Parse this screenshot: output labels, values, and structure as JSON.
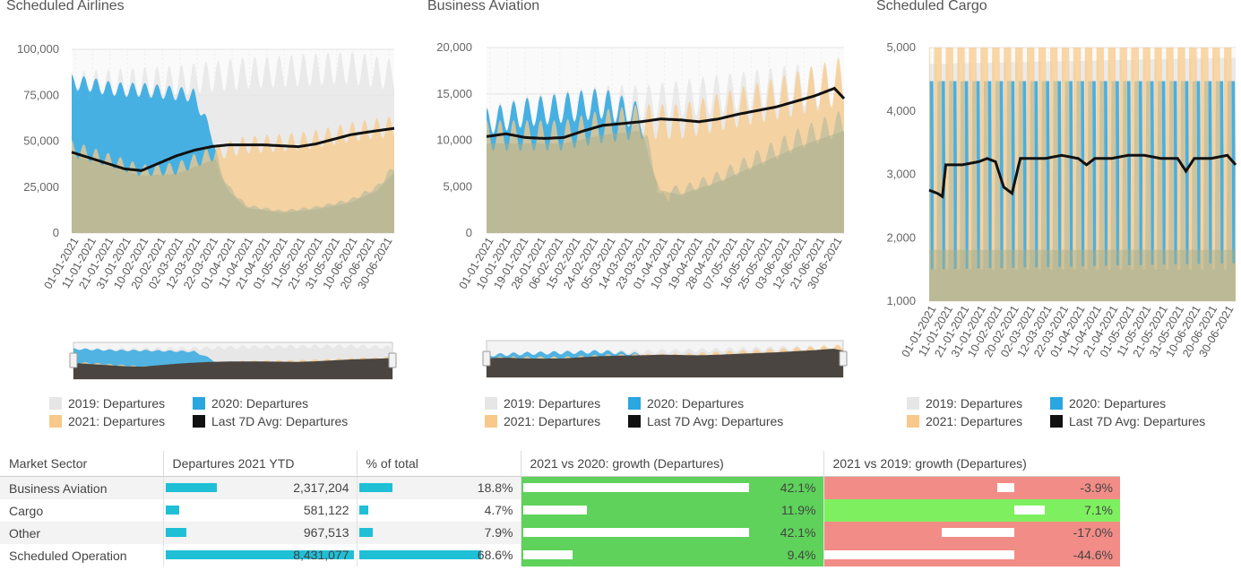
{
  "charts": [
    {
      "title": "Scheduled Airlines",
      "yticks": [
        "100,000",
        "75,000",
        "50,000",
        "25,000",
        "0"
      ],
      "xticks": [
        "01-01-2021",
        "11-01-2021",
        "21-01-2021",
        "31-01-2021",
        "10-02-2021",
        "20-02-2021",
        "02-03-2021",
        "12-03-2021",
        "22-03-2021",
        "01-04-2021",
        "11-04-2021",
        "21-04-2021",
        "01-05-2021",
        "11-05-2021",
        "21-05-2021",
        "31-05-2021",
        "10-06-2021",
        "20-06-2021",
        "30-06-2021"
      ],
      "legend": [
        "2019: Departures",
        "2020: Departures",
        "2021: Departures",
        "Last 7D Avg: Departures"
      ]
    },
    {
      "title": "Business Aviation",
      "yticks": [
        "20,000",
        "15,000",
        "10,000",
        "5,000",
        "0"
      ],
      "xticks": [
        "01-01-2021",
        "10-01-2021",
        "19-01-2021",
        "28-01-2021",
        "06-02-2021",
        "15-02-2021",
        "24-02-2021",
        "05-03-2021",
        "14-03-2021",
        "23-03-2021",
        "01-04-2021",
        "10-04-2021",
        "19-04-2021",
        "28-04-2021",
        "07-05-2021",
        "16-05-2021",
        "25-05-2021",
        "03-06-2021",
        "12-06-2021",
        "21-06-2021",
        "30-06-2021"
      ],
      "legend": [
        "2019: Departures",
        "2020: Departures",
        "2021: Departures",
        "Last 7D Avg: Departures"
      ]
    },
    {
      "title": "Scheduled Cargo",
      "yticks": [
        "5,000",
        "4,000",
        "3,000",
        "2,000",
        "1,000"
      ],
      "xticks": [
        "01-01-2021",
        "11-01-2021",
        "21-01-2021",
        "31-01-2021",
        "10-02-2021",
        "20-02-2021",
        "02-03-2021",
        "12-03-2021",
        "22-03-2021",
        "01-04-2021",
        "11-04-2021",
        "21-04-2021",
        "01-05-2021",
        "11-05-2021",
        "21-05-2021",
        "31-05-2021",
        "10-06-2021",
        "20-06-2021",
        "30-06-2021"
      ],
      "legend": [
        "2019: Departures",
        "2020: Departures",
        "2021: Departures",
        "Last 7D Avg: Departures"
      ]
    }
  ],
  "chart_data": [
    {
      "type": "area",
      "title": "Scheduled Airlines",
      "ylim": [
        0,
        100000
      ],
      "x_range": [
        "01-01-2021",
        "05-07-2021"
      ],
      "series": [
        {
          "name": "2019: Departures",
          "approx_x_day": [
            0,
            20,
            40,
            60,
            80,
            100,
            120,
            140,
            160,
            185
          ],
          "values": [
            80000,
            81000,
            82000,
            83000,
            85000,
            87000,
            88000,
            89000,
            90000,
            86000
          ]
        },
        {
          "name": "2020: Departures",
          "approx_x_day": [
            0,
            10,
            20,
            30,
            40,
            50,
            60,
            70,
            80,
            85,
            90,
            100,
            120,
            140,
            160,
            175,
            185
          ],
          "values": [
            82000,
            81000,
            79000,
            78000,
            78000,
            77000,
            76000,
            75000,
            55000,
            35000,
            25000,
            15000,
            12000,
            14000,
            18000,
            25000,
            36000
          ]
        },
        {
          "name": "2021: Departures",
          "approx_x_day": [
            0,
            20,
            40,
            60,
            80,
            100,
            120,
            140,
            160,
            185
          ],
          "values": [
            46000,
            40000,
            34000,
            35000,
            43000,
            48000,
            49000,
            51000,
            55000,
            58000
          ]
        },
        {
          "name": "Last 7D Avg: Departures",
          "approx_x_day": [
            0,
            10,
            20,
            30,
            40,
            50,
            60,
            70,
            80,
            90,
            100,
            110,
            120,
            130,
            140,
            150,
            160,
            170,
            185
          ],
          "values": [
            44000,
            41000,
            38000,
            35000,
            34000,
            38000,
            42000,
            45000,
            47000,
            48000,
            48000,
            48000,
            47500,
            47000,
            48500,
            51000,
            53500,
            55000,
            57000
          ]
        }
      ]
    },
    {
      "type": "area",
      "title": "Business Aviation",
      "ylim": [
        0,
        20000
      ],
      "x_range": [
        "01-01-2021",
        "05-07-2021"
      ],
      "series": [
        {
          "name": "2019: Departures",
          "approx_x_day": [
            0,
            20,
            40,
            60,
            80,
            100,
            120,
            140,
            160,
            185
          ],
          "values": [
            12000,
            13000,
            13500,
            14000,
            14000,
            14500,
            15000,
            15500,
            16000,
            15500
          ]
        },
        {
          "name": "2020: Departures",
          "approx_x_day": [
            0,
            20,
            40,
            60,
            80,
            85,
            90,
            100,
            120,
            140,
            160,
            185
          ],
          "values": [
            12000,
            13000,
            13500,
            14000,
            12500,
            8000,
            5000,
            4500,
            6000,
            8000,
            10000,
            12000
          ]
        },
        {
          "name": "2021: Departures",
          "approx_x_day": [
            0,
            20,
            40,
            60,
            80,
            100,
            120,
            140,
            160,
            185
          ],
          "values": [
            10500,
            10500,
            10500,
            11500,
            12000,
            12000,
            13000,
            14000,
            15000,
            16500
          ]
        },
        {
          "name": "Last 7D Avg: Departures",
          "approx_x_day": [
            0,
            10,
            20,
            30,
            40,
            50,
            60,
            70,
            80,
            90,
            100,
            110,
            120,
            130,
            140,
            150,
            160,
            170,
            180,
            185
          ],
          "values": [
            10400,
            10700,
            10300,
            10200,
            10300,
            11000,
            11600,
            11800,
            12000,
            12300,
            12200,
            12000,
            12300,
            12800,
            13200,
            13600,
            14200,
            14800,
            15600,
            14500
          ]
        }
      ]
    },
    {
      "type": "area",
      "title": "Scheduled Cargo",
      "ylim": [
        1000,
        5000
      ],
      "x_range": [
        "01-01-2021",
        "05-07-2021"
      ],
      "series": [
        {
          "name": "2019: Departures",
          "approx_x_day": [
            0,
            185
          ],
          "values": [
            3900,
            4000
          ]
        },
        {
          "name": "2020: Departures",
          "approx_x_day": [
            0,
            185
          ],
          "values": [
            3700,
            3700
          ]
        },
        {
          "name": "2021: Departures",
          "approx_x_day": [
            0,
            185
          ],
          "values": [
            4100,
            4200
          ]
        },
        {
          "name": "Last 7D Avg: Departures",
          "approx_x_day": [
            0,
            5,
            8,
            10,
            20,
            30,
            35,
            40,
            45,
            50,
            55,
            65,
            70,
            80,
            90,
            95,
            100,
            110,
            120,
            130,
            140,
            150,
            155,
            160,
            170,
            180,
            185
          ],
          "values": [
            2750,
            2700,
            2650,
            3150,
            3150,
            3200,
            3250,
            3200,
            2800,
            2700,
            3250,
            3250,
            3250,
            3300,
            3250,
            3150,
            3250,
            3250,
            3300,
            3300,
            3250,
            3250,
            3050,
            3250,
            3250,
            3300,
            3150
          ]
        }
      ]
    }
  ],
  "table": {
    "headers": [
      "Market Sector",
      "Departures 2021 YTD",
      "% of total",
      "2021 vs 2020: growth (Departures)",
      "2021 vs 2019: growth (Departures)"
    ],
    "rows": [
      {
        "sector": "Business Aviation",
        "departures": "2,317,204",
        "share": "18.8%",
        "g2020": "42.1%",
        "g2019": "-3.9%",
        "dep_frac": 0.27,
        "share_frac": 0.27,
        "g2020_frac": 1.0,
        "g2019_frac": 0.09
      },
      {
        "sector": "Cargo",
        "departures": "581,122",
        "share": "4.7%",
        "g2020": "11.9%",
        "g2019": "7.1%",
        "dep_frac": 0.07,
        "share_frac": 0.07,
        "g2020_frac": 0.28,
        "g2019_frac": 0.16
      },
      {
        "sector": "Other",
        "departures": "967,513",
        "share": "7.9%",
        "g2020": "42.1%",
        "g2019": "-17.0%",
        "dep_frac": 0.11,
        "share_frac": 0.11,
        "g2020_frac": 1.0,
        "g2019_frac": 0.38
      },
      {
        "sector": "Scheduled Operation",
        "departures": "8,431,077",
        "share": "68.6%",
        "g2020": "9.4%",
        "g2019": "-44.6%",
        "dep_frac": 1.0,
        "share_frac": 1.0,
        "g2020_frac": 0.22,
        "g2019_frac": 1.0
      }
    ]
  },
  "colors": {
    "c2019": "#e6e6e6",
    "c2020": "#2aa6e0",
    "c2021": "#f8c98a",
    "avg": "#111111",
    "positive": "#5ed25a",
    "positive_light": "#7ef060",
    "negative": "#f28c86",
    "table_bar": "#1fbfd6"
  }
}
